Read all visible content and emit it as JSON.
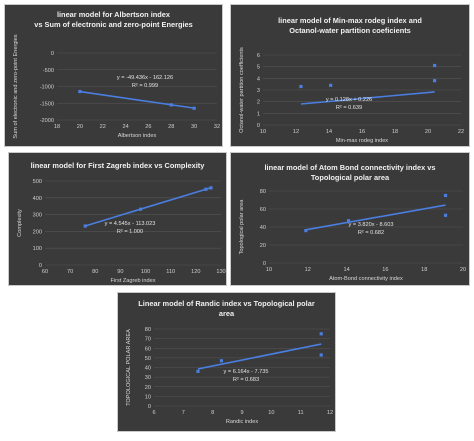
{
  "colors": {
    "panel_bg": "#3a3a3a",
    "grid": "#555555",
    "series": "#4a7ee0",
    "text": "#d8d8d8"
  },
  "chart_data": [
    {
      "type": "scatter",
      "title": "linear model for Albertson index\nvs  Sum of electronic and zero-point Energies",
      "xlabel": "Albertson index",
      "ylabel": "Sum of electronic and zero-point Energies",
      "xlim": [
        18,
        32
      ],
      "ylim": [
        -2000,
        0
      ],
      "xticks": [
        "18",
        "20",
        "22",
        "24",
        "26",
        "28",
        "30",
        "32"
      ],
      "yticks": [
        "0",
        "-500",
        "-1000",
        "-1500",
        "-2000"
      ],
      "points": [
        [
          20,
          -1150
        ],
        [
          28,
          -1550
        ],
        [
          30,
          -1650
        ]
      ],
      "trendline": {
        "slope": -49.436,
        "intercept": -162.126
      },
      "equation": "y = -49.436x - 162.126",
      "r2": "R² = 0.999",
      "grid": true
    },
    {
      "type": "scatter",
      "title": "linear model of Min-max rodeg index and\nOctanol-water partition coeficients",
      "xlabel": "Min-max rodeg index",
      "ylabel": "Octanol-water partition coefficients",
      "xlim": [
        10,
        22
      ],
      "ylim": [
        0,
        6
      ],
      "xticks": [
        "10",
        "12",
        "14",
        "16",
        "18",
        "20",
        "22"
      ],
      "yticks": [
        "0",
        "1",
        "2",
        "3",
        "4",
        "5",
        "6"
      ],
      "points": [
        [
          12.3,
          3.3
        ],
        [
          14.1,
          3.4
        ],
        [
          20.4,
          3.8
        ],
        [
          20.4,
          5.1
        ]
      ],
      "trendline": {
        "slope": 0.128,
        "intercept": 0.226
      },
      "equation": "y = 0.128x + 0.226",
      "r2": "R² = 0.639",
      "grid": true
    },
    {
      "type": "scatter",
      "title": "linear model for First Zagreb index vs Complexity",
      "xlabel": "First Zagreb index",
      "ylabel": "Complexity",
      "xlim": [
        60,
        130
      ],
      "ylim": [
        0,
        500
      ],
      "xticks": [
        "60",
        "70",
        "80",
        "90",
        "100",
        "110",
        "120",
        "130"
      ],
      "yticks": [
        "0",
        "100",
        "200",
        "300",
        "400",
        "500"
      ],
      "points": [
        [
          76,
          232
        ],
        [
          98,
          332
        ],
        [
          124,
          451
        ],
        [
          126,
          459
        ]
      ],
      "trendline": {
        "slope": 4.545,
        "intercept": -113.023
      },
      "equation": "y = 4.545x - 113.023",
      "r2": "R² = 1.000",
      "grid": true
    },
    {
      "type": "scatter",
      "title": "linear model of Atom Bond connectivity index vs\nTopological polar area",
      "xlabel": "Atom-Bond connectivity index",
      "ylabel": "Topological polar area",
      "xlim": [
        10,
        20
      ],
      "ylim": [
        0,
        80
      ],
      "xticks": [
        "10",
        "12",
        "14",
        "16",
        "18",
        "20"
      ],
      "yticks": [
        "0",
        "20",
        "40",
        "60",
        "80"
      ],
      "points": [
        [
          11.9,
          36
        ],
        [
          14.1,
          47
        ],
        [
          19.1,
          53
        ],
        [
          19.1,
          75
        ]
      ],
      "trendline": {
        "slope": 3.82,
        "intercept": -8.603
      },
      "equation": "y = 3.820x - 8.603",
      "r2": "R² = 0.682",
      "grid": true
    },
    {
      "type": "scatter",
      "title": "Linear model of Randic index vs Topological polar\narea",
      "xlabel": "Randic index",
      "ylabel": "TOPOLOGICAL POLAR AREA",
      "xlim": [
        6,
        12
      ],
      "ylim": [
        0,
        80
      ],
      "xticks": [
        "6",
        "7",
        "8",
        "9",
        "10",
        "11",
        "12"
      ],
      "yticks": [
        "0",
        "10",
        "20",
        "30",
        "40",
        "50",
        "60",
        "70",
        "80"
      ],
      "points": [
        [
          7.5,
          36
        ],
        [
          8.3,
          47
        ],
        [
          11.7,
          53
        ],
        [
          11.7,
          75
        ]
      ],
      "trendline": {
        "slope": 6.164,
        "intercept": -7.735
      },
      "equation": "y = 6.164x - 7.735",
      "r2": "R² = 0.683",
      "grid": true
    }
  ]
}
